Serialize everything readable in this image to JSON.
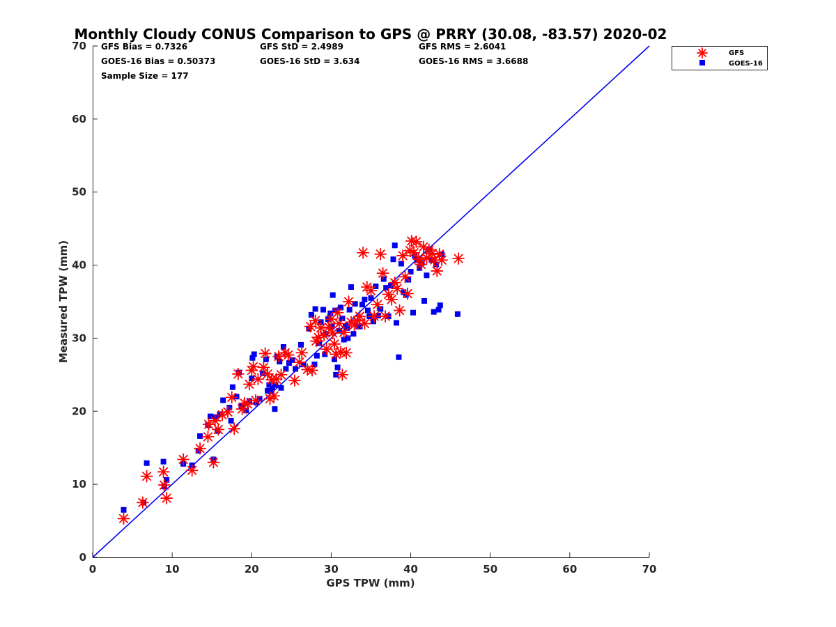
{
  "chart_data": {
    "type": "scatter",
    "title": "Monthly Cloudy CONUS Comparison to GPS @ PRRY (30.08, -83.57) 2020-02",
    "xlabel": "GPS TPW (mm)",
    "ylabel": "Measured TPW (mm)",
    "xlim": [
      0,
      70
    ],
    "ylim": [
      0,
      70
    ],
    "xticks": [
      "0",
      "10",
      "20",
      "30",
      "40",
      "50",
      "60",
      "70"
    ],
    "yticks": [
      "0",
      "10",
      "20",
      "30",
      "40",
      "50",
      "60",
      "70"
    ],
    "grid": false,
    "legend_position": "top-right",
    "reference_line": {
      "from": [
        0,
        0
      ],
      "to": [
        70,
        70
      ],
      "color": "#0000ee"
    },
    "stats": {
      "gfs_bias": "GFS Bias = 0.7326",
      "gfs_std": "GFS StD = 2.4989",
      "gfs_rms": "GFS RMS = 2.6041",
      "goes_bias": "GOES-16 Bias = 0.50373",
      "goes_std": "GOES-16 StD = 3.634",
      "goes_rms": "GOES-16 RMS = 3.6688",
      "sample": "Sample Size = 177"
    },
    "series": [
      {
        "name": "GFS",
        "marker": "asterisk",
        "color": "#ff0000",
        "points": [
          [
            3.9,
            5.3
          ],
          [
            6.3,
            7.5
          ],
          [
            6.8,
            11.1
          ],
          [
            8.9,
            11.7
          ],
          [
            9.0,
            9.9
          ],
          [
            9.3,
            8.1
          ],
          [
            11.4,
            13.4
          ],
          [
            12.5,
            11.9
          ],
          [
            13.5,
            14.9
          ],
          [
            14.5,
            16.5
          ],
          [
            14.6,
            18.2
          ],
          [
            15.2,
            13.0
          ],
          [
            15.4,
            18.7
          ],
          [
            15.8,
            17.5
          ],
          [
            16.3,
            19.5
          ],
          [
            17.0,
            19.9
          ],
          [
            17.5,
            21.9
          ],
          [
            17.8,
            17.6
          ],
          [
            18.3,
            25.1
          ],
          [
            18.8,
            20.3
          ],
          [
            19.1,
            21.1
          ],
          [
            19.5,
            21.0
          ],
          [
            19.7,
            23.7
          ],
          [
            20.0,
            25.6
          ],
          [
            20.2,
            26.1
          ],
          [
            20.5,
            21.5
          ],
          [
            20.8,
            24.4
          ],
          [
            21.5,
            26.0
          ],
          [
            21.7,
            27.9
          ],
          [
            22.0,
            25.1
          ],
          [
            22.3,
            21.7
          ],
          [
            22.5,
            24.3
          ],
          [
            22.8,
            22.1
          ],
          [
            23.1,
            24.4
          ],
          [
            23.4,
            27.5
          ],
          [
            23.7,
            25.0
          ],
          [
            24.2,
            28.0
          ],
          [
            24.6,
            27.7
          ],
          [
            25.4,
            24.2
          ],
          [
            26.0,
            26.7
          ],
          [
            26.3,
            28.0
          ],
          [
            27.0,
            25.7
          ],
          [
            27.4,
            31.6
          ],
          [
            27.6,
            25.6
          ],
          [
            28.0,
            32.4
          ],
          [
            28.1,
            29.6
          ],
          [
            28.4,
            30.1
          ],
          [
            28.7,
            31.4
          ],
          [
            29.1,
            30.4
          ],
          [
            29.4,
            28.5
          ],
          [
            29.7,
            31.5
          ],
          [
            30.0,
            32.6
          ],
          [
            30.2,
            30.7
          ],
          [
            30.4,
            29.2
          ],
          [
            30.6,
            27.8
          ],
          [
            30.8,
            33.5
          ],
          [
            31.0,
            32.0
          ],
          [
            31.2,
            28.1
          ],
          [
            31.4,
            25.0
          ],
          [
            31.6,
            30.8
          ],
          [
            31.9,
            28.0
          ],
          [
            32.2,
            35.0
          ],
          [
            32.5,
            32.2
          ],
          [
            32.9,
            31.8
          ],
          [
            33.3,
            32.4
          ],
          [
            33.6,
            33.0
          ],
          [
            34.0,
            41.7
          ],
          [
            34.2,
            32.0
          ],
          [
            34.5,
            37.0
          ],
          [
            35.0,
            36.5
          ],
          [
            35.4,
            33.0
          ],
          [
            35.8,
            34.6
          ],
          [
            36.2,
            41.5
          ],
          [
            36.5,
            38.9
          ],
          [
            36.8,
            33.0
          ],
          [
            37.2,
            36.0
          ],
          [
            37.6,
            35.3
          ],
          [
            38.0,
            37.6
          ],
          [
            38.3,
            36.8
          ],
          [
            38.6,
            33.8
          ],
          [
            39.0,
            41.3
          ],
          [
            39.3,
            38.4
          ],
          [
            39.6,
            36.1
          ],
          [
            39.9,
            42.0
          ],
          [
            40.1,
            43.3
          ],
          [
            40.4,
            41.7
          ],
          [
            40.7,
            43.2
          ],
          [
            41.0,
            40.8
          ],
          [
            41.3,
            40.1
          ],
          [
            41.6,
            42.5
          ],
          [
            42.0,
            41.0
          ],
          [
            42.3,
            42.1
          ],
          [
            42.7,
            41.6
          ],
          [
            43.0,
            40.7
          ],
          [
            43.3,
            39.2
          ],
          [
            43.6,
            41.5
          ],
          [
            43.9,
            40.7
          ],
          [
            46.0,
            40.9
          ]
        ]
      },
      {
        "name": "GOES-16",
        "marker": "square",
        "color": "#0000ee",
        "points": [
          [
            3.9,
            6.5
          ],
          [
            6.4,
            7.5
          ],
          [
            6.8,
            12.9
          ],
          [
            8.9,
            13.1
          ],
          [
            9.0,
            9.7
          ],
          [
            9.3,
            10.6
          ],
          [
            11.4,
            12.8
          ],
          [
            12.5,
            12.6
          ],
          [
            13.5,
            16.6
          ],
          [
            13.3,
            14.6
          ],
          [
            14.5,
            18.1
          ],
          [
            14.8,
            19.3
          ],
          [
            15.2,
            13.4
          ],
          [
            15.5,
            19.2
          ],
          [
            15.7,
            17.3
          ],
          [
            16.0,
            19.6
          ],
          [
            16.4,
            21.5
          ],
          [
            17.2,
            20.5
          ],
          [
            17.4,
            18.7
          ],
          [
            17.6,
            23.3
          ],
          [
            18.1,
            22.0
          ],
          [
            18.4,
            25.3
          ],
          [
            18.7,
            20.7
          ],
          [
            19.3,
            20.1
          ],
          [
            19.7,
            21.4
          ],
          [
            20.0,
            24.5
          ],
          [
            20.1,
            27.3
          ],
          [
            20.3,
            27.8
          ],
          [
            20.6,
            21.2
          ],
          [
            21.0,
            21.7
          ],
          [
            21.4,
            25.2
          ],
          [
            21.8,
            27.1
          ],
          [
            22.0,
            22.8
          ],
          [
            22.2,
            23.6
          ],
          [
            22.4,
            22.7
          ],
          [
            22.6,
            23.3
          ],
          [
            22.9,
            20.3
          ],
          [
            23.0,
            23.6
          ],
          [
            23.2,
            27.5
          ],
          [
            23.5,
            26.8
          ],
          [
            23.7,
            23.2
          ],
          [
            24.0,
            28.8
          ],
          [
            24.3,
            25.8
          ],
          [
            24.7,
            26.6
          ],
          [
            25.1,
            27.0
          ],
          [
            25.5,
            25.8
          ],
          [
            26.2,
            29.1
          ],
          [
            26.5,
            26.4
          ],
          [
            27.2,
            31.3
          ],
          [
            27.5,
            33.2
          ],
          [
            27.9,
            26.4
          ],
          [
            28.0,
            34.0
          ],
          [
            28.2,
            27.6
          ],
          [
            28.5,
            29.3
          ],
          [
            28.7,
            32.2
          ],
          [
            29.0,
            33.9
          ],
          [
            29.2,
            27.8
          ],
          [
            29.3,
            30.6
          ],
          [
            29.6,
            32.6
          ],
          [
            29.9,
            33.4
          ],
          [
            30.1,
            31.6
          ],
          [
            30.2,
            35.9
          ],
          [
            30.4,
            27.1
          ],
          [
            30.5,
            33.8
          ],
          [
            30.6,
            25.0
          ],
          [
            30.8,
            26.0
          ],
          [
            31.0,
            31.0
          ],
          [
            31.2,
            34.2
          ],
          [
            31.4,
            32.7
          ],
          [
            31.6,
            29.8
          ],
          [
            31.8,
            31.7
          ],
          [
            32.0,
            31.4
          ],
          [
            32.1,
            30.0
          ],
          [
            32.3,
            33.9
          ],
          [
            32.5,
            37.0
          ],
          [
            32.8,
            30.6
          ],
          [
            33.0,
            34.7
          ],
          [
            33.4,
            31.6
          ],
          [
            33.6,
            31.6
          ],
          [
            33.9,
            34.6
          ],
          [
            34.2,
            35.3
          ],
          [
            34.6,
            33.8
          ],
          [
            34.8,
            33.0
          ],
          [
            35.0,
            35.5
          ],
          [
            35.3,
            32.3
          ],
          [
            35.6,
            37.1
          ],
          [
            35.9,
            33.1
          ],
          [
            36.2,
            34.0
          ],
          [
            36.6,
            38.1
          ],
          [
            36.9,
            36.9
          ],
          [
            37.2,
            33.0
          ],
          [
            37.5,
            37.2
          ],
          [
            37.8,
            40.8
          ],
          [
            38.0,
            42.7
          ],
          [
            38.2,
            32.1
          ],
          [
            38.5,
            27.4
          ],
          [
            38.8,
            40.2
          ],
          [
            39.1,
            36.3
          ],
          [
            39.4,
            35.9
          ],
          [
            39.7,
            38.0
          ],
          [
            40.0,
            39.1
          ],
          [
            40.3,
            33.5
          ],
          [
            40.5,
            41.3
          ],
          [
            40.8,
            40.7
          ],
          [
            41.1,
            39.6
          ],
          [
            41.4,
            40.3
          ],
          [
            41.7,
            35.1
          ],
          [
            42.0,
            38.6
          ],
          [
            42.3,
            42.1
          ],
          [
            42.6,
            40.7
          ],
          [
            42.9,
            33.6
          ],
          [
            43.2,
            40.1
          ],
          [
            43.5,
            33.9
          ],
          [
            43.7,
            34.5
          ],
          [
            43.9,
            41.5
          ],
          [
            45.9,
            33.3
          ]
        ]
      }
    ]
  }
}
